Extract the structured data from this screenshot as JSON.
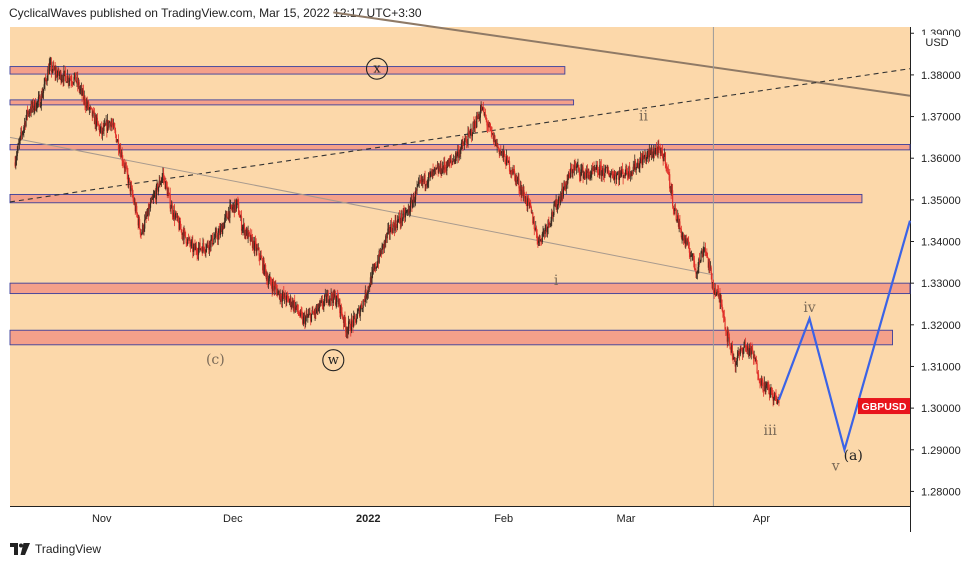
{
  "header": {
    "publisher": "CyclicalWaves",
    "text": "CyclicalWaves published on TradingView.com, Mar 15, 2022 12:17 UTC+3:30"
  },
  "footer": {
    "brand": "TradingView"
  },
  "colors": {
    "background": "#fcd8aa",
    "zone_fill": "#f4a08a",
    "zone_border": "#3a3f9c",
    "candle_up": "#3a2a20",
    "candle_down": "#e0302a",
    "projection": "#3b63e6",
    "badge": "#e8141c",
    "trendline_upper": "#8f7a66",
    "trendline_lower": "#a89a8e",
    "wave_label": "#7a6a58"
  },
  "chart_data": {
    "type": "candlestick",
    "symbol": "GBPUSD",
    "currency_label": "USD",
    "last_price": 1.3005,
    "ylim": [
      1.2765,
      1.3915
    ],
    "y_ticks": [
      "1.28000",
      "1.29000",
      "1.30000",
      "1.31000",
      "1.32000",
      "1.33000",
      "1.34000",
      "1.35000",
      "1.36000",
      "1.37000",
      "1.38000",
      "1.39000"
    ],
    "x_ticks": [
      "Nov",
      "Dec",
      "2022",
      "Feb",
      "Mar",
      "Apr"
    ],
    "x_tick_dates": [
      "2021-11-01",
      "2021-12-01",
      "2022-01-01",
      "2022-02-01",
      "2022-03-01",
      "2022-04-01"
    ],
    "x_range": [
      "2021-10-11",
      "2022-05-05"
    ],
    "price_path": [
      [
        "2021-10-12",
        1.359
      ],
      [
        "2021-10-15",
        1.371
      ],
      [
        "2021-10-18",
        1.374
      ],
      [
        "2021-10-20",
        1.382
      ],
      [
        "2021-10-22",
        1.38
      ],
      [
        "2021-10-26",
        1.379
      ],
      [
        "2021-10-28",
        1.374
      ],
      [
        "2021-11-01",
        1.366
      ],
      [
        "2021-11-03",
        1.369
      ],
      [
        "2021-11-05",
        1.363
      ],
      [
        "2021-11-08",
        1.351
      ],
      [
        "2021-11-10",
        1.342
      ],
      [
        "2021-11-12",
        1.348
      ],
      [
        "2021-11-15",
        1.356
      ],
      [
        "2021-11-17",
        1.348
      ],
      [
        "2021-11-19",
        1.343
      ],
      [
        "2021-11-22",
        1.338
      ],
      [
        "2021-11-25",
        1.339
      ],
      [
        "2021-11-28",
        1.342
      ],
      [
        "2021-11-30",
        1.347
      ],
      [
        "2021-12-02",
        1.349
      ],
      [
        "2021-12-03",
        1.344
      ],
      [
        "2021-12-07",
        1.337
      ],
      [
        "2021-12-09",
        1.331
      ],
      [
        "2021-12-12",
        1.327
      ],
      [
        "2021-12-15",
        1.325
      ],
      [
        "2021-12-17",
        1.321
      ],
      [
        "2021-12-20",
        1.323
      ],
      [
        "2021-12-23",
        1.327
      ],
      [
        "2021-12-25",
        1.326
      ],
      [
        "2021-12-27",
        1.319
      ],
      [
        "2021-12-29",
        1.321
      ],
      [
        "2021-12-31",
        1.326
      ],
      [
        "2022-01-03",
        1.335
      ],
      [
        "2022-01-06",
        1.343
      ],
      [
        "2022-01-10",
        1.347
      ],
      [
        "2022-01-13",
        1.354
      ],
      [
        "2022-01-17",
        1.357
      ],
      [
        "2022-01-20",
        1.359
      ],
      [
        "2022-01-24",
        1.365
      ],
      [
        "2022-01-27",
        1.372
      ],
      [
        "2022-01-29",
        1.366
      ],
      [
        "2022-01-31",
        1.362
      ],
      [
        "2022-02-03",
        1.357
      ],
      [
        "2022-02-07",
        1.348
      ],
      [
        "2022-02-09",
        1.34
      ],
      [
        "2022-02-11",
        1.344
      ],
      [
        "2022-02-14",
        1.351
      ],
      [
        "2022-02-17",
        1.358
      ],
      [
        "2022-02-20",
        1.356
      ],
      [
        "2022-02-23",
        1.357
      ],
      [
        "2022-02-27",
        1.356
      ],
      [
        "2022-03-02",
        1.357
      ],
      [
        "2022-03-05",
        1.36
      ],
      [
        "2022-03-08",
        1.362
      ],
      [
        "2022-03-10",
        1.36
      ],
      [
        "2022-03-12",
        1.348
      ],
      [
        "2022-03-14",
        1.341
      ],
      [
        "2022-03-16",
        1.337
      ],
      [
        "2022-03-17",
        1.333
      ],
      [
        "2022-03-19",
        1.339
      ],
      [
        "2022-03-21",
        1.329
      ],
      [
        "2022-03-23",
        1.325
      ],
      [
        "2022-03-24",
        1.318
      ],
      [
        "2022-03-26",
        1.311
      ],
      [
        "2022-03-28",
        1.315
      ],
      [
        "2022-03-30",
        1.313
      ],
      [
        "2022-04-01",
        1.306
      ],
      [
        "2022-04-03",
        1.304
      ],
      [
        "2022-04-05",
        1.301
      ]
    ],
    "zones": [
      {
        "start": "2021-10-11",
        "end": "2022-02-15",
        "high": 1.382,
        "low": 1.3802
      },
      {
        "start": "2021-10-11",
        "end": "2022-02-17",
        "high": 1.374,
        "low": 1.3728
      },
      {
        "start": "2021-10-11",
        "end": "2022-05-05",
        "high": 1.3633,
        "low": 1.362
      },
      {
        "start": "2021-10-11",
        "end": "2022-04-24",
        "high": 1.3513,
        "low": 1.3493
      },
      {
        "start": "2021-10-11",
        "end": "2022-05-05",
        "high": 1.33,
        "low": 1.3275
      },
      {
        "start": "2021-10-11",
        "end": "2022-05-01",
        "high": 1.3187,
        "low": 1.3152
      }
    ],
    "trendlines": [
      {
        "style": "solid",
        "role": "upper",
        "from": [
          "2021-12-24",
          1.395
        ],
        "to": [
          "2022-05-05",
          1.375
        ]
      },
      {
        "style": "dashed",
        "role": "channel",
        "from": [
          "2021-10-11",
          1.3495
        ],
        "to": [
          "2022-05-05",
          1.3815
        ]
      },
      {
        "style": "solid",
        "role": "lower",
        "from": [
          "2021-10-11",
          1.365
        ],
        "to": [
          "2022-03-21",
          1.332
        ]
      }
    ],
    "vertical_marker": "2022-03-21",
    "projection": [
      [
        "2022-04-05",
        1.302
      ],
      [
        "2022-04-12",
        1.3215
      ],
      [
        "2022-04-20",
        1.29
      ],
      [
        "2022-05-05",
        1.345
      ]
    ],
    "wave_labels": [
      {
        "text": "x",
        "date": "2022-01-03",
        "price": 1.3815,
        "circled": true
      },
      {
        "text": "w",
        "date": "2021-12-24",
        "price": 1.3115,
        "circled": true
      },
      {
        "text": "(c)",
        "date": "2021-11-27",
        "price": 1.3115,
        "circled": false
      },
      {
        "text": "ii",
        "date": "2022-03-05",
        "price": 1.37,
        "circled": false
      },
      {
        "text": "i",
        "date": "2022-02-13",
        "price": 1.3305,
        "circled": false
      },
      {
        "text": "iv",
        "date": "2022-04-12",
        "price": 1.324,
        "circled": false
      },
      {
        "text": "iii",
        "date": "2022-04-03",
        "price": 1.2945,
        "circled": false
      },
      {
        "text": "v",
        "date": "2022-04-18",
        "price": 1.286,
        "circled": false
      },
      {
        "text": "(a)",
        "date": "2022-04-22",
        "price": 1.2885,
        "circled": false
      }
    ]
  }
}
